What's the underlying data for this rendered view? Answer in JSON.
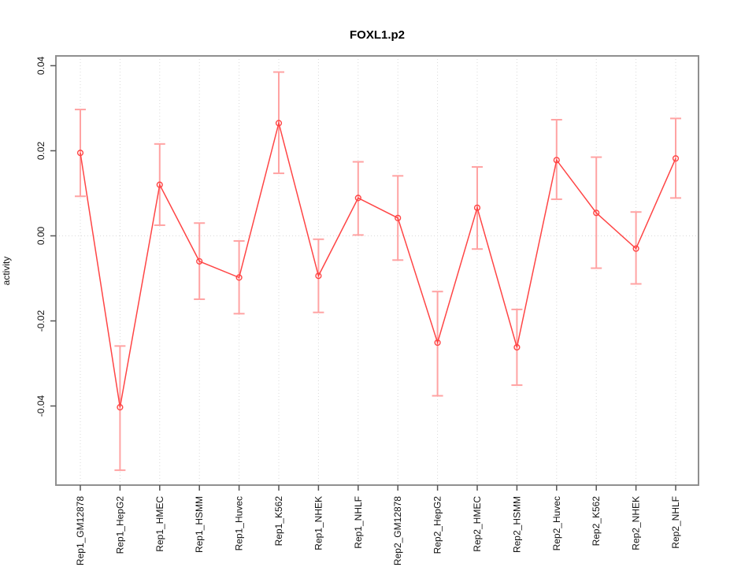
{
  "chart_data": {
    "type": "line",
    "title": "FOXL1.p2",
    "xlabel": "",
    "ylabel": "activity",
    "categories": [
      "Rep1_GM12878",
      "Rep1_HepG2",
      "Rep1_HMEC",
      "Rep1_HSMM",
      "Rep1_Huvec",
      "Rep1_K562",
      "Rep1_NHEK",
      "Rep1_NHLF",
      "Rep2_GM12878",
      "Rep2_HepG2",
      "Rep2_HMEC",
      "Rep2_HSMM",
      "Rep2_Huvec",
      "Rep2_K562",
      "Rep2_NHEK",
      "Rep2_NHLF"
    ],
    "series": [
      {
        "name": "activity",
        "marker": "open-circle",
        "values": [
          0.0195,
          -0.0403,
          0.012,
          -0.006,
          -0.0098,
          0.0265,
          -0.0094,
          0.0089,
          0.0042,
          -0.0251,
          0.0066,
          -0.0262,
          0.0178,
          0.0054,
          -0.003,
          0.0182
        ],
        "err_low": [
          0.0093,
          -0.0551,
          0.0025,
          -0.0149,
          -0.0183,
          0.0147,
          -0.018,
          0.0002,
          -0.0057,
          -0.0376,
          -0.0031,
          -0.0351,
          0.0086,
          -0.0076,
          -0.0113,
          0.0089
        ],
        "err_high": [
          0.0297,
          -0.0259,
          0.0216,
          0.003,
          -0.0012,
          0.0385,
          -0.0008,
          0.0174,
          0.0141,
          -0.0131,
          0.0162,
          -0.0173,
          0.0273,
          0.0185,
          0.0056,
          0.0276
        ]
      }
    ],
    "ylim": [
      -0.0586,
      0.0423
    ],
    "yticks": [
      {
        "value": 0.04,
        "label": "0.04"
      },
      {
        "value": 0.02,
        "label": "0.02"
      },
      {
        "value": 0.0,
        "label": "0.00"
      },
      {
        "value": -0.02,
        "label": "-0.02"
      },
      {
        "value": -0.04,
        "label": "-0.04"
      }
    ],
    "grid": {
      "vertical_per_category": true,
      "horizontal_at_zero": true,
      "style": "dotted"
    },
    "legend": "none",
    "colors": {
      "line": "#ff4545",
      "marker": "#ff4545",
      "error_bar": "#ffa3a3",
      "box": "#8f8f8f",
      "tick": "#555555",
      "grid": "#d9d9d9",
      "text": "#111111",
      "background": "#ffffff"
    }
  }
}
